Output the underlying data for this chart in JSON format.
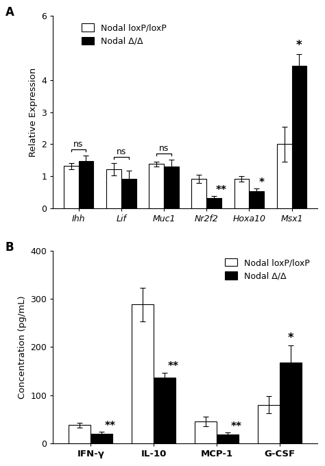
{
  "panel_A": {
    "categories": [
      "Ihh",
      "Lif",
      "Muc1",
      "Nr2f2",
      "Hoxa10",
      "Msx1"
    ],
    "loxP_values": [
      1.32,
      1.22,
      1.38,
      0.92,
      0.92,
      2.0
    ],
    "loxP_errors": [
      0.1,
      0.2,
      0.08,
      0.12,
      0.08,
      0.55
    ],
    "delta_values": [
      1.47,
      0.93,
      1.3,
      0.33,
      0.54,
      4.45
    ],
    "delta_errors": [
      0.18,
      0.25,
      0.22,
      0.05,
      0.08,
      0.35
    ],
    "ylabel": "Relative Expression",
    "ylim": [
      0,
      6
    ],
    "yticks": [
      0,
      1,
      2,
      3,
      4,
      6
    ],
    "sig_labels_delta": [
      "",
      "",
      "",
      "**",
      "*",
      ""
    ],
    "sig_above_delta": [
      "",
      "",
      "",
      "",
      "",
      "*"
    ],
    "ns_labels": [
      "ns",
      "ns",
      "ns",
      "",
      "",
      ""
    ],
    "panel_label": "A"
  },
  "panel_B": {
    "categories": [
      "IFN-γ",
      "IL-10",
      "MCP-1",
      "G-CSF"
    ],
    "loxP_values": [
      38,
      288,
      45,
      80
    ],
    "loxP_errors": [
      5,
      35,
      10,
      18
    ],
    "delta_values": [
      20,
      137,
      18,
      168
    ],
    "delta_errors": [
      4,
      10,
      4,
      35
    ],
    "ylabel": "Concentration (pg/mL)",
    "ylim": [
      0,
      400
    ],
    "yticks": [
      0,
      100,
      200,
      300,
      400
    ],
    "sig_labels_delta": [
      "**",
      "**",
      "**",
      ""
    ],
    "sig_above_delta": [
      "",
      "",
      "",
      "*"
    ],
    "panel_label": "B"
  },
  "legend_loxP": "Nodal loxP/loxP",
  "legend_delta": "Nodal Δ/Δ",
  "color_loxP": "white",
  "color_delta": "black",
  "edge_color": "black",
  "bar_width": 0.35,
  "font_size": 9,
  "tick_font_size": 9,
  "label_font_size": 9.5
}
